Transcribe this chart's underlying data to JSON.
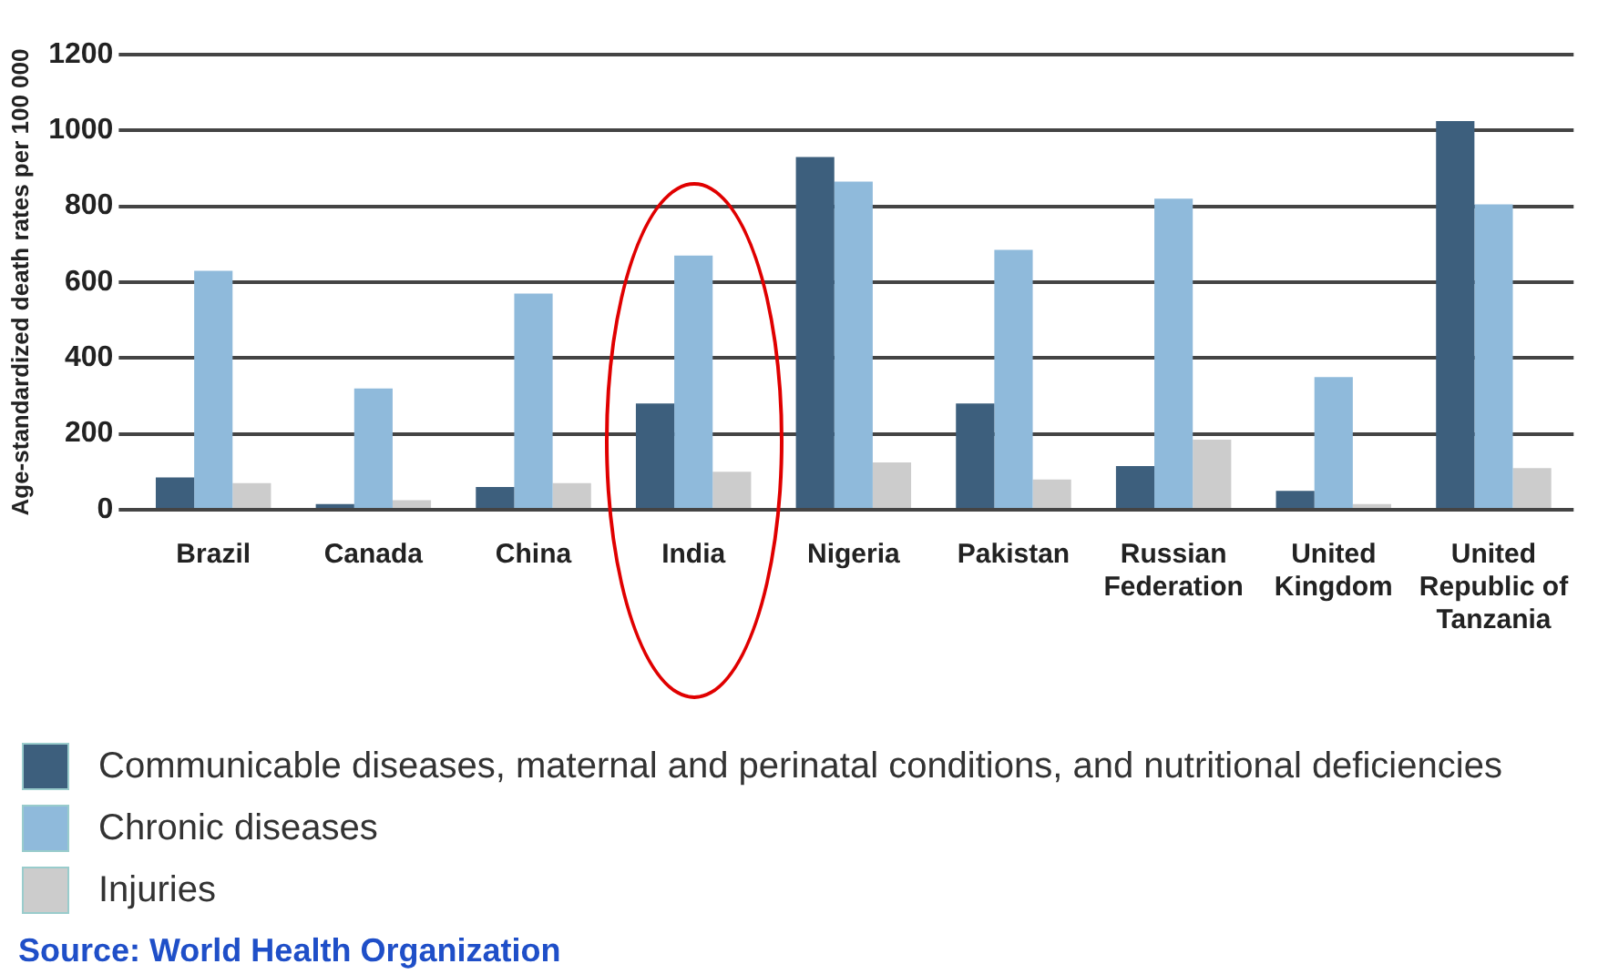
{
  "chart_data": {
    "type": "bar",
    "ylabel": "Age-standardized death rates per 100 000",
    "categories": [
      "Brazil",
      "Canada",
      "China",
      "India",
      "Nigeria",
      "Pakistan",
      "Russian Federation",
      "United Kingdom",
      "United Republic of Tanzania"
    ],
    "series": [
      {
        "name": "Communicable diseases, maternal and perinatal conditions, and nutritional deficiencies",
        "color": "#3d5f7d",
        "values": [
          85,
          15,
          60,
          280,
          930,
          280,
          115,
          50,
          1025
        ]
      },
      {
        "name": "Chronic diseases",
        "color": "#8fbadb",
        "values": [
          630,
          320,
          570,
          670,
          865,
          685,
          820,
          350,
          805
        ]
      },
      {
        "name": "Injuries",
        "color": "#cccccc",
        "values": [
          70,
          25,
          70,
          100,
          125,
          80,
          185,
          15,
          110
        ]
      }
    ],
    "ylim": [
      0,
      1200
    ],
    "yticks": [
      0,
      200,
      400,
      600,
      800,
      1000,
      1200
    ],
    "grid": "y",
    "legend": "bottom",
    "annotations": [
      "Source: World Health Organization"
    ]
  }
}
